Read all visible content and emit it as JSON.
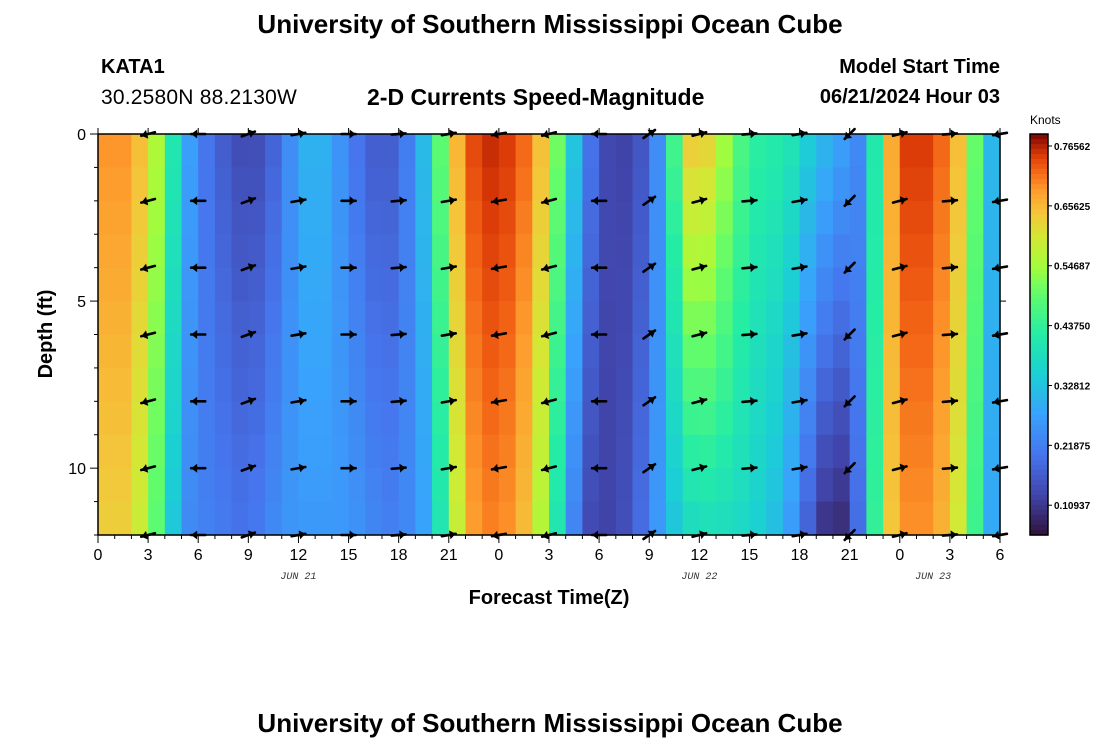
{
  "header": {
    "title": "University of Southern Mississippi Ocean Cube",
    "station_id": "KATA1",
    "station_coords": "30.2580N  88.2130W",
    "plot_title": "2-D Currents Speed-Magnitude",
    "model_start_label": "Model Start Time",
    "model_start_value": "06/21/2024 Hour 03"
  },
  "footer": {
    "title": "University of Southern Mississippi Ocean Cube"
  },
  "chart_data": {
    "type": "heatmap",
    "title": "2-D Currents Speed-Magnitude",
    "xlabel": "Forecast Time(Z)",
    "ylabel": "Depth (ft)",
    "x_unit": "hours since 2024-06-21 00Z",
    "xlim": [
      0,
      54
    ],
    "ylim": [
      0,
      12
    ],
    "y_inverted": true,
    "x_ticks": [
      {
        "hour": 0,
        "label": "0"
      },
      {
        "hour": 3,
        "label": "3"
      },
      {
        "hour": 6,
        "label": "6"
      },
      {
        "hour": 9,
        "label": "9"
      },
      {
        "hour": 12,
        "label": "12"
      },
      {
        "hour": 15,
        "label": "15"
      },
      {
        "hour": 18,
        "label": "18"
      },
      {
        "hour": 21,
        "label": "21"
      },
      {
        "hour": 24,
        "label": "0"
      },
      {
        "hour": 27,
        "label": "3"
      },
      {
        "hour": 30,
        "label": "6"
      },
      {
        "hour": 33,
        "label": "9"
      },
      {
        "hour": 36,
        "label": "12"
      },
      {
        "hour": 39,
        "label": "15"
      },
      {
        "hour": 42,
        "label": "18"
      },
      {
        "hour": 45,
        "label": "21"
      },
      {
        "hour": 48,
        "label": "0"
      },
      {
        "hour": 51,
        "label": "3"
      },
      {
        "hour": 54,
        "label": "6"
      }
    ],
    "date_labels": [
      {
        "hour": 12,
        "label": "JUN 21"
      },
      {
        "hour": 36,
        "label": "JUN 22"
      },
      {
        "hour": 50,
        "label": "JUN 23"
      }
    ],
    "y_ticks": [
      {
        "depth": 0,
        "label": "0"
      },
      {
        "depth": 5,
        "label": "5"
      },
      {
        "depth": 10,
        "label": "10"
      }
    ],
    "colorbar": {
      "unit": "Knots",
      "min": 0.055,
      "max": 0.7875,
      "ticks": [
        {
          "value": 0.109375,
          "label": "0.10937"
        },
        {
          "value": 0.21875,
          "label": "0.21875"
        },
        {
          "value": 0.328125,
          "label": "0.32812"
        },
        {
          "value": 0.4375,
          "label": "0.43750"
        },
        {
          "value": 0.546875,
          "label": "0.54687"
        },
        {
          "value": 0.65625,
          "label": "0.65625"
        },
        {
          "value": 0.765625,
          "label": "0.76562"
        }
      ]
    },
    "speed_profile": {
      "hours": [
        0,
        1,
        2,
        3,
        4,
        5,
        6,
        7,
        8,
        9,
        10,
        11,
        12,
        13,
        14,
        15,
        16,
        17,
        18,
        19,
        20,
        21,
        22,
        23,
        24,
        25,
        26,
        27,
        28,
        29,
        30,
        31,
        32,
        33,
        34,
        35,
        36,
        37,
        38,
        39,
        40,
        41,
        42,
        43,
        44,
        45,
        46,
        47,
        48,
        49,
        50,
        51,
        52,
        53,
        54
      ],
      "surface_speed": [
        0.68,
        0.7,
        0.68,
        0.62,
        0.5,
        0.32,
        0.22,
        0.18,
        0.15,
        0.13,
        0.15,
        0.2,
        0.28,
        0.32,
        0.28,
        0.22,
        0.18,
        0.15,
        0.18,
        0.25,
        0.38,
        0.6,
        0.72,
        0.76,
        0.76,
        0.74,
        0.7,
        0.6,
        0.42,
        0.25,
        0.15,
        0.12,
        0.13,
        0.18,
        0.3,
        0.62,
        0.66,
        0.6,
        0.5,
        0.44,
        0.42,
        0.42,
        0.38,
        0.32,
        0.3,
        0.25,
        0.22,
        0.6,
        0.74,
        0.76,
        0.74,
        0.7,
        0.6,
        0.4,
        0.22
      ],
      "bottom_speed": [
        0.62,
        0.64,
        0.62,
        0.55,
        0.42,
        0.25,
        0.22,
        0.22,
        0.2,
        0.2,
        0.22,
        0.25,
        0.26,
        0.26,
        0.26,
        0.26,
        0.24,
        0.22,
        0.22,
        0.25,
        0.3,
        0.5,
        0.66,
        0.7,
        0.7,
        0.68,
        0.62,
        0.5,
        0.3,
        0.15,
        0.12,
        0.13,
        0.16,
        0.22,
        0.3,
        0.36,
        0.38,
        0.38,
        0.38,
        0.36,
        0.34,
        0.3,
        0.22,
        0.12,
        0.08,
        0.1,
        0.28,
        0.6,
        0.68,
        0.7,
        0.68,
        0.64,
        0.55,
        0.35,
        0.22
      ]
    },
    "vectors": {
      "hours": [
        3,
        6,
        9,
        12,
        15,
        18,
        21,
        24,
        27,
        30,
        33,
        36,
        39,
        42,
        45,
        48,
        51,
        54
      ],
      "depths": [
        0,
        2,
        4,
        6,
        8,
        10,
        12
      ],
      "direction_deg": [
        195,
        180,
        20,
        10,
        0,
        5,
        10,
        190,
        195,
        180,
        35,
        15,
        5,
        10,
        225,
        15,
        5,
        190
      ]
    }
  }
}
